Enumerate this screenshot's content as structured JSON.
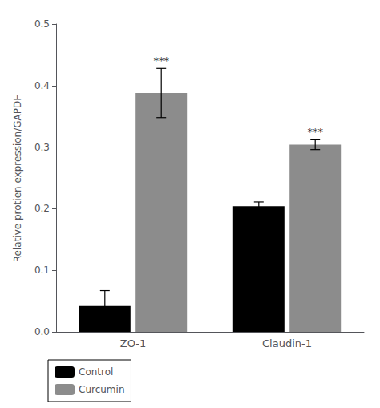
{
  "chart_data": {
    "type": "bar",
    "categories": [
      "ZO-1",
      "Claudin-1"
    ],
    "series": [
      {
        "name": "Control",
        "color": "#000000",
        "values": [
          0.042,
          0.204
        ],
        "errors": [
          0.025,
          0.007
        ]
      },
      {
        "name": "Curcumin",
        "color": "#8c8c8c",
        "values": [
          0.388,
          0.304
        ],
        "errors": [
          0.04,
          0.008
        ],
        "annotations": [
          "***",
          "***"
        ]
      }
    ],
    "ylabel": "Relative protien expression/GAPDH",
    "ylim": [
      0,
      0.5
    ],
    "yticks": [
      {
        "value": 0,
        "label": "0.0"
      },
      0.1,
      0.2,
      0.3,
      0.4,
      0.5
    ],
    "grid": false,
    "legend": "lower left"
  }
}
